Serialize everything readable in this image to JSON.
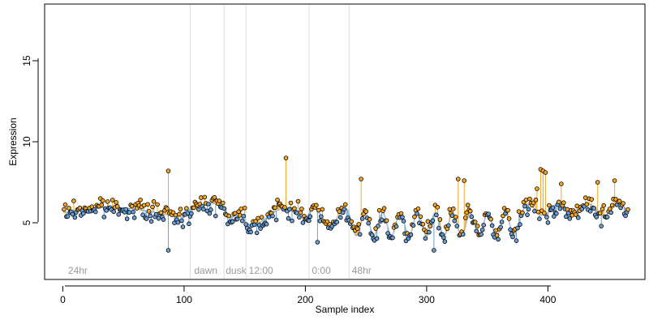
{
  "chart_data": {
    "type": "scatter",
    "title": "",
    "xlabel": "Sample index",
    "ylabel": "Expression",
    "xlim": [
      -15,
      480
    ],
    "ylim": [
      1.5,
      18.5
    ],
    "x_ticks": [
      0,
      100,
      200,
      300,
      400
    ],
    "y_ticks": [
      5,
      10,
      15
    ],
    "grid": false,
    "legend": "none",
    "colors": {
      "above_fit": "#f5a623",
      "below_fit": "#6a9fd6",
      "fit_line": "#9ab6d6",
      "points_edge": "#000000",
      "separator": "#dddddd",
      "phase_text": "#9a9a9a"
    },
    "phase_separators": [
      105,
      133,
      151,
      203,
      236
    ],
    "phase_labels": [
      {
        "x": 3,
        "text": "24hr"
      },
      {
        "x": 107,
        "text": "dawn"
      },
      {
        "x": 133,
        "text": "dusk"
      },
      {
        "x": 152,
        "text": "12:00"
      },
      {
        "x": 204,
        "text": "0:00"
      },
      {
        "x": 237,
        "text": "48hr"
      }
    ],
    "outliers": [
      {
        "x": 87,
        "y": 8.2
      },
      {
        "x": 184,
        "y": 9.0
      },
      {
        "x": 246,
        "y": 7.7
      },
      {
        "x": 326,
        "y": 7.7
      },
      {
        "x": 331,
        "y": 7.6
      },
      {
        "x": 391,
        "y": 7.1
      },
      {
        "x": 394,
        "y": 8.3
      },
      {
        "x": 396,
        "y": 8.2
      },
      {
        "x": 398,
        "y": 8.1
      },
      {
        "x": 411,
        "y": 7.4
      },
      {
        "x": 441,
        "y": 7.5
      },
      {
        "x": 455,
        "y": 7.6
      },
      {
        "x": 87,
        "y": 3.3
      },
      {
        "x": 210,
        "y": 3.8
      },
      {
        "x": 306,
        "y": 3.3
      }
    ],
    "n_points": 466,
    "seed": 7
  }
}
